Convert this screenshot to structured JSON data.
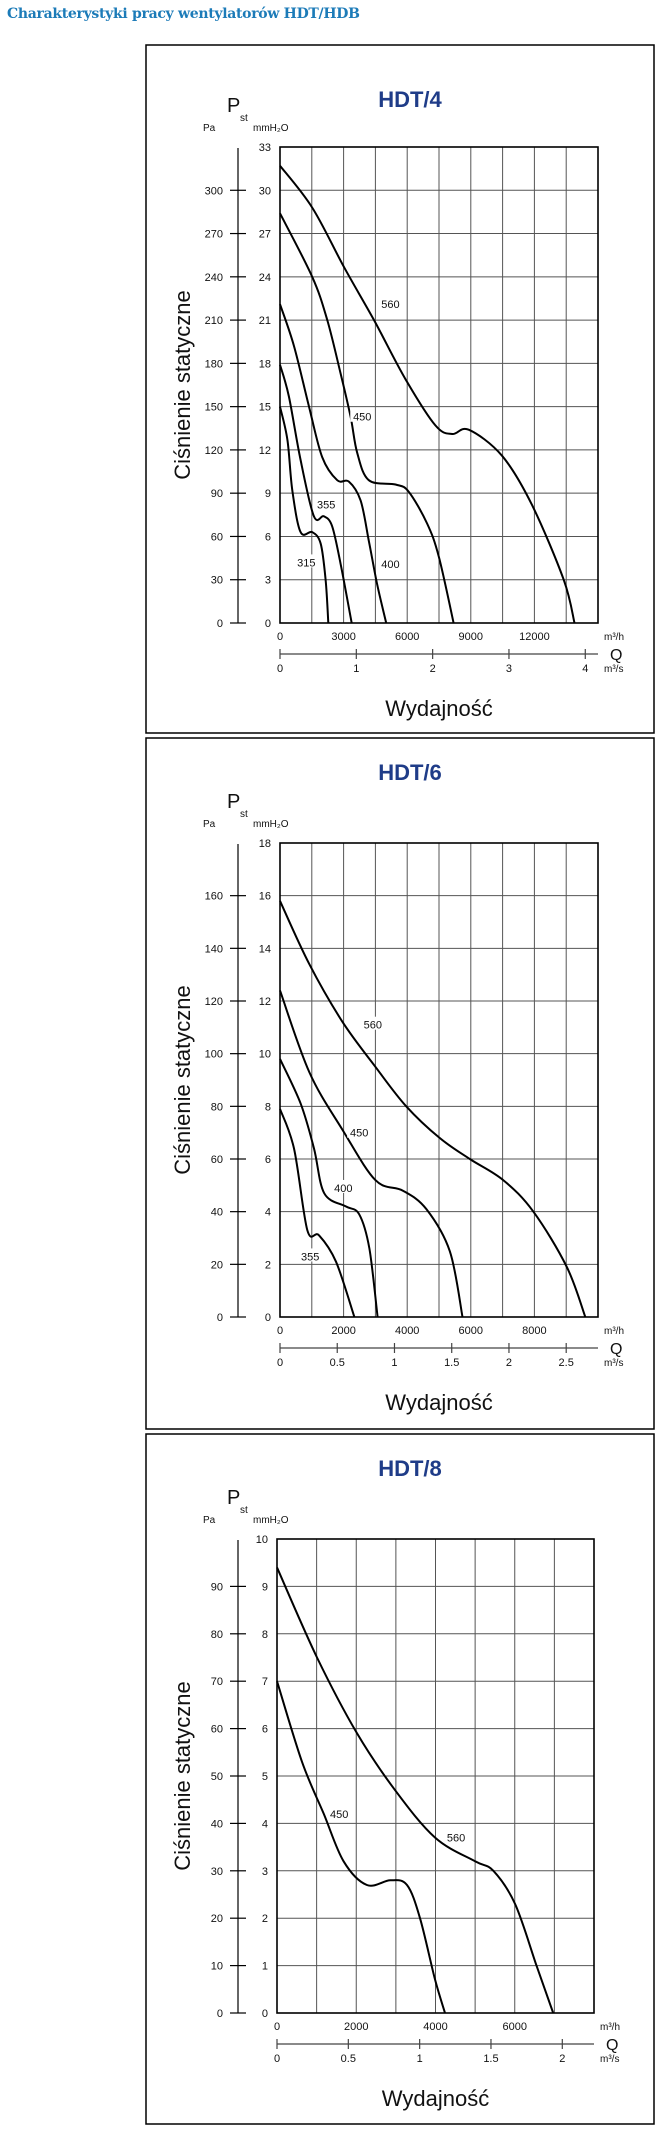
{
  "page_title": "Charakterystyki pracy wentylatorów HDT/HDB",
  "chart_data": [
    {
      "type": "line",
      "title": "HDT/4",
      "ylabel": "Ciśnienie statyczne",
      "y_symbol": "P",
      "y_symbol_sub": "st",
      "y_unit_left": "Pa",
      "y_unit_right": "mmH₂O",
      "xlabel": "Wydajność",
      "x_symbol": "Q",
      "x_unit": "m³/h",
      "x2_unit": "m³/s",
      "xlim": [
        0,
        15000
      ],
      "ylim": [
        0,
        33
      ],
      "x_grid_step": 1500,
      "y_grid_step": 3,
      "x_ticks": [
        0,
        3000,
        6000,
        9000,
        12000
      ],
      "y_ticks": [
        0,
        3,
        6,
        9,
        12,
        15,
        18,
        21,
        24,
        27,
        30,
        33
      ],
      "pa_ticks": [
        0,
        30,
        60,
        90,
        120,
        150,
        180,
        210,
        240,
        270,
        300
      ],
      "x2_ticks": [
        0,
        1,
        2,
        3,
        4
      ],
      "series": [
        {
          "name": "560",
          "label_at": [
            5210,
            22.1
          ],
          "points": [
            [
              0,
              31.7
            ],
            [
              1520,
              28.8
            ],
            [
              3010,
              24.7
            ],
            [
              4470,
              20.9
            ],
            [
              5920,
              16.9
            ],
            [
              7330,
              13.7
            ],
            [
              8120,
              13.1
            ],
            [
              8900,
              13.4
            ],
            [
              10470,
              11.6
            ],
            [
              11880,
              8.2
            ],
            [
              13380,
              3.0
            ],
            [
              13890,
              0
            ]
          ]
        },
        {
          "name": "450",
          "label_at": [
            3880,
            14.3
          ],
          "points": [
            [
              0,
              28.4
            ],
            [
              1520,
              24.0
            ],
            [
              2230,
              21.0
            ],
            [
              2860,
              17.3
            ],
            [
              3330,
              14.3
            ],
            [
              3640,
              11.8
            ],
            [
              4190,
              9.9
            ],
            [
              5450,
              9.6
            ],
            [
              6070,
              9.1
            ],
            [
              6940,
              6.9
            ],
            [
              7490,
              4.6
            ],
            [
              8190,
              0
            ]
          ]
        },
        {
          "name": "400",
          "label_at": [
            5210,
            4.1
          ],
          "points": [
            [
              0,
              22.1
            ],
            [
              660,
              19.2
            ],
            [
              1370,
              15.0
            ],
            [
              1990,
              11.5
            ],
            [
              2700,
              9.9
            ],
            [
              3250,
              9.8
            ],
            [
              3800,
              8.5
            ],
            [
              4190,
              5.7
            ],
            [
              4580,
              2.7
            ],
            [
              5010,
              0
            ]
          ]
        },
        {
          "name": "355",
          "label_at": [
            2180,
            8.2
          ],
          "points": [
            [
              0,
              17.9
            ],
            [
              420,
              15.7
            ],
            [
              970,
              11.3
            ],
            [
              1600,
              7.4
            ],
            [
              2070,
              7.4
            ],
            [
              2460,
              6.7
            ],
            [
              2860,
              4.1
            ],
            [
              3380,
              0
            ]
          ]
        },
        {
          "name": "315",
          "label_at": [
            1240,
            4.2
          ],
          "points": [
            [
              0,
              15.0
            ],
            [
              350,
              12.7
            ],
            [
              580,
              9.2
            ],
            [
              970,
              6.3
            ],
            [
              1520,
              6.3
            ],
            [
              1920,
              5.5
            ],
            [
              2150,
              3.0
            ],
            [
              2280,
              0
            ]
          ]
        }
      ]
    },
    {
      "type": "line",
      "title": "HDT/6",
      "ylabel": "Ciśnienie statyczne",
      "y_symbol": "P",
      "y_symbol_sub": "st",
      "y_unit_left": "Pa",
      "y_unit_right": "mmH₂O",
      "xlabel": "Wydajność",
      "x_symbol": "Q",
      "x_unit": "m³/h",
      "x2_unit": "m³/s",
      "xlim": [
        0,
        10000
      ],
      "ylim": [
        0,
        18
      ],
      "x_grid_step": 1000,
      "y_grid_step": 2,
      "x_ticks": [
        0,
        2000,
        4000,
        6000,
        8000
      ],
      "y_ticks": [
        0,
        2,
        4,
        6,
        8,
        10,
        12,
        14,
        16,
        18
      ],
      "pa_ticks": [
        0,
        20,
        40,
        60,
        80,
        100,
        120,
        140,
        160
      ],
      "x2_ticks": [
        0,
        0.5,
        1,
        1.5,
        2,
        2.5
      ],
      "series": [
        {
          "name": "560",
          "label_at": [
            2920,
            11.1
          ],
          "points": [
            [
              0,
              15.8
            ],
            [
              920,
              13.4
            ],
            [
              1970,
              11.2
            ],
            [
              3000,
              9.5
            ],
            [
              3970,
              8.0
            ],
            [
              5020,
              6.8
            ],
            [
              5970,
              6.0
            ],
            [
              7020,
              5.2
            ],
            [
              7970,
              4.0
            ],
            [
              9020,
              1.9
            ],
            [
              9600,
              0
            ]
          ]
        },
        {
          "name": "450",
          "label_at": [
            2490,
            7.0
          ],
          "points": [
            [
              0,
              12.4
            ],
            [
              920,
              9.3
            ],
            [
              1970,
              7.1
            ],
            [
              3000,
              5.2
            ],
            [
              3860,
              4.8
            ],
            [
              4600,
              4.1
            ],
            [
              5340,
              2.5
            ],
            [
              5740,
              0
            ]
          ]
        },
        {
          "name": "400",
          "label_at": [
            1990,
            4.9
          ],
          "points": [
            [
              0,
              9.8
            ],
            [
              650,
              8.1
            ],
            [
              1070,
              6.4
            ],
            [
              1390,
              4.7
            ],
            [
              2070,
              4.2
            ],
            [
              2490,
              3.9
            ],
            [
              2810,
              2.6
            ],
            [
              3070,
              0
            ]
          ]
        },
        {
          "name": "355",
          "label_at": [
            950,
            2.3
          ],
          "points": [
            [
              0,
              7.9
            ],
            [
              440,
              6.4
            ],
            [
              860,
              3.3
            ],
            [
              1230,
              3.1
            ],
            [
              1760,
              2.1
            ],
            [
              2340,
              0
            ]
          ]
        }
      ]
    },
    {
      "type": "line",
      "title": "HDT/8",
      "ylabel": "Ciśnienie statyczne",
      "y_symbol": "P",
      "y_symbol_sub": "st",
      "y_unit_left": "Pa",
      "y_unit_right": "mmH₂O",
      "xlabel": "Wydajność",
      "x_symbol": "Q",
      "x_unit": "m³/h",
      "x2_unit": "m³/s",
      "xlim": [
        0,
        8000
      ],
      "ylim": [
        0,
        10
      ],
      "x_grid_step": 1000,
      "y_grid_step": 1,
      "x_ticks": [
        0,
        2000,
        4000,
        6000
      ],
      "y_ticks": [
        0,
        1,
        2,
        3,
        4,
        5,
        6,
        7,
        8,
        9,
        10
      ],
      "pa_ticks": [
        0,
        10,
        20,
        30,
        40,
        50,
        60,
        70,
        80,
        90
      ],
      "x2_ticks": [
        0,
        0.5,
        1,
        1.5,
        2
      ],
      "series": [
        {
          "name": "560",
          "label_at": [
            4520,
            3.7
          ],
          "points": [
            [
              0,
              9.4
            ],
            [
              1010,
              7.5
            ],
            [
              2020,
              5.9
            ],
            [
              2980,
              4.7
            ],
            [
              3990,
              3.7
            ],
            [
              5000,
              3.2
            ],
            [
              5460,
              3.0
            ],
            [
              6010,
              2.3
            ],
            [
              6550,
              1.0
            ],
            [
              6970,
              0
            ]
          ]
        },
        {
          "name": "450",
          "label_at": [
            1570,
            4.2
          ],
          "points": [
            [
              0,
              7.0
            ],
            [
              630,
              5.3
            ],
            [
              1180,
              4.2
            ],
            [
              1680,
              3.2
            ],
            [
              2270,
              2.7
            ],
            [
              2860,
              2.8
            ],
            [
              3280,
              2.7
            ],
            [
              3610,
              2.0
            ],
            [
              3990,
              0.7
            ],
            [
              4240,
              0
            ]
          ]
        }
      ]
    }
  ],
  "colors": {
    "page_title": "#1c7bb8",
    "chart_title": "#1f3c88",
    "curve": "#000000",
    "grid": "#555555"
  }
}
